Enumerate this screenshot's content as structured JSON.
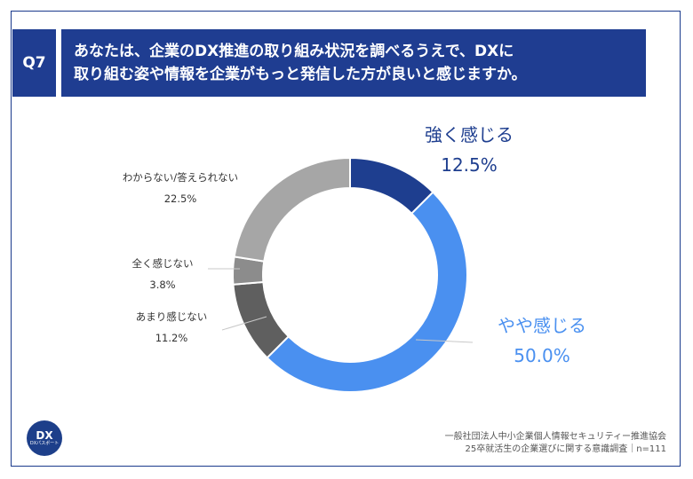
{
  "header": {
    "q_label": "Q7",
    "question_line1": "あなたは、企業のDX推進の取り組み状況を調べるうえで、DXに",
    "question_line2": "取り組む姿や情報を企業がもっと発信した方が良いと感じますか。"
  },
  "chart_data": {
    "type": "pie",
    "donut": true,
    "slices": [
      {
        "label": "強く感じる",
        "value": 12.5,
        "value_text": "12.5%",
        "color": "#1e3e8f"
      },
      {
        "label": "やや感じる",
        "value": 50.0,
        "value_text": "50.0%",
        "color": "#4a90f0"
      },
      {
        "label": "あまり感じない",
        "value": 11.2,
        "value_text": "11.2%",
        "color": "#5f5f5f"
      },
      {
        "label": "全く感じない",
        "value": 3.8,
        "value_text": "3.8%",
        "color": "#8c8c8c"
      },
      {
        "label": "わからない/答えられない",
        "value": 22.5,
        "value_text": "22.5%",
        "color": "#a6a6a6"
      }
    ]
  },
  "logo": {
    "text": "DX",
    "subtext": "DXパスポート"
  },
  "footer": {
    "line1": "一般社団法人中小企業個人情報セキュリティー推進協会",
    "line2": "25卒就活生の企業選びに関する意識調査｜n=111"
  }
}
